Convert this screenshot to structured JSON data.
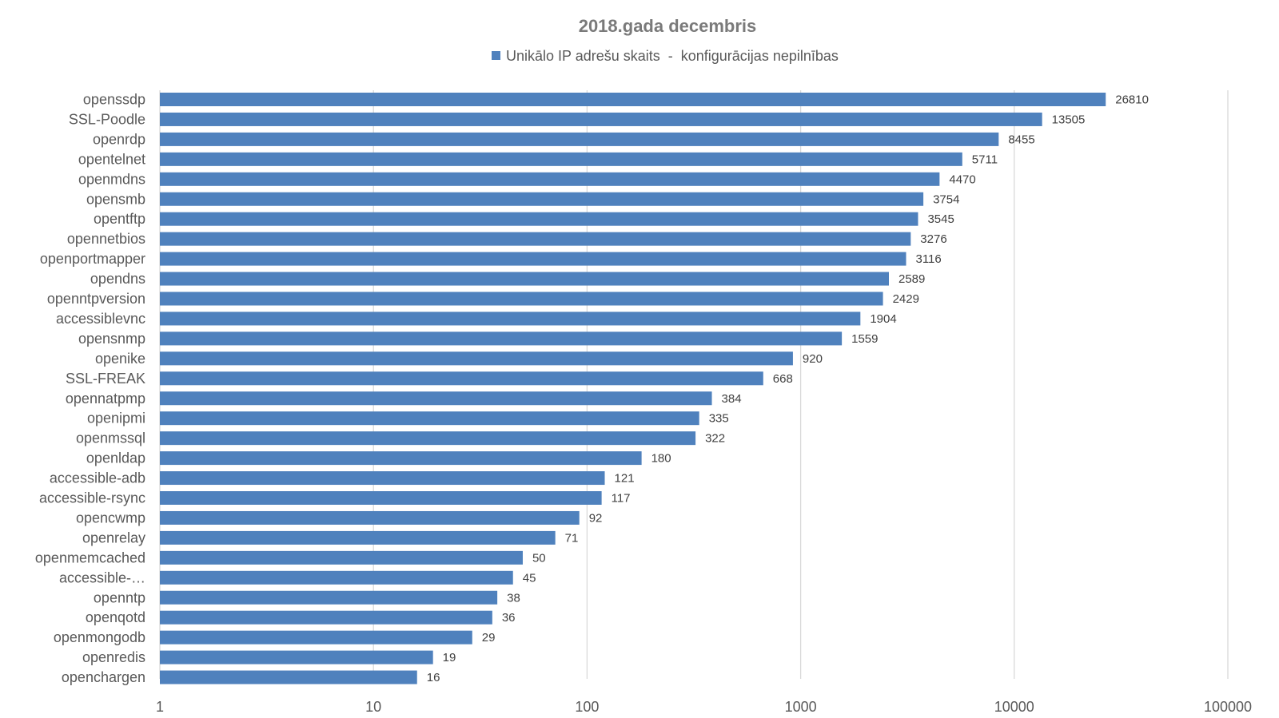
{
  "chart_data": {
    "type": "bar",
    "orientation": "horizontal",
    "title": "2018.gada decembris",
    "xscale": "log",
    "xlim": [
      1,
      100000
    ],
    "x_ticks": [
      "1",
      "10",
      "100",
      "1000",
      "10000",
      "100000"
    ],
    "grid": true,
    "legend_position": "top",
    "categories": [
      "openssdp",
      "SSL-Poodle",
      "openrdp",
      "opentelnet",
      "openmdns",
      "opensmb",
      "opentftp",
      "opennetbios",
      "openportmapper",
      "opendns",
      "openntpversion",
      "accessiblevnc",
      "opensnmp",
      "openike",
      "SSL-FREAK",
      "opennatpmp",
      "openipmi",
      "openmssql",
      "openldap",
      "accessible-adb",
      "accessible-rsync",
      "opencwmp",
      "openrelay",
      "openmemcached",
      "accessible-…",
      "openntp",
      "openqotd",
      "openmongodb",
      "openredis",
      "openchargen"
    ],
    "series": [
      {
        "name": "Unikālo IP adrešu skaits  -  konfigurācijas nepilnības",
        "color": "#4f81bd",
        "values": [
          26810,
          13505,
          8455,
          5711,
          4470,
          3754,
          3545,
          3276,
          3116,
          2589,
          2429,
          1904,
          1559,
          920,
          668,
          384,
          335,
          322,
          180,
          121,
          117,
          92,
          71,
          50,
          45,
          38,
          36,
          29,
          19,
          16
        ]
      }
    ]
  }
}
